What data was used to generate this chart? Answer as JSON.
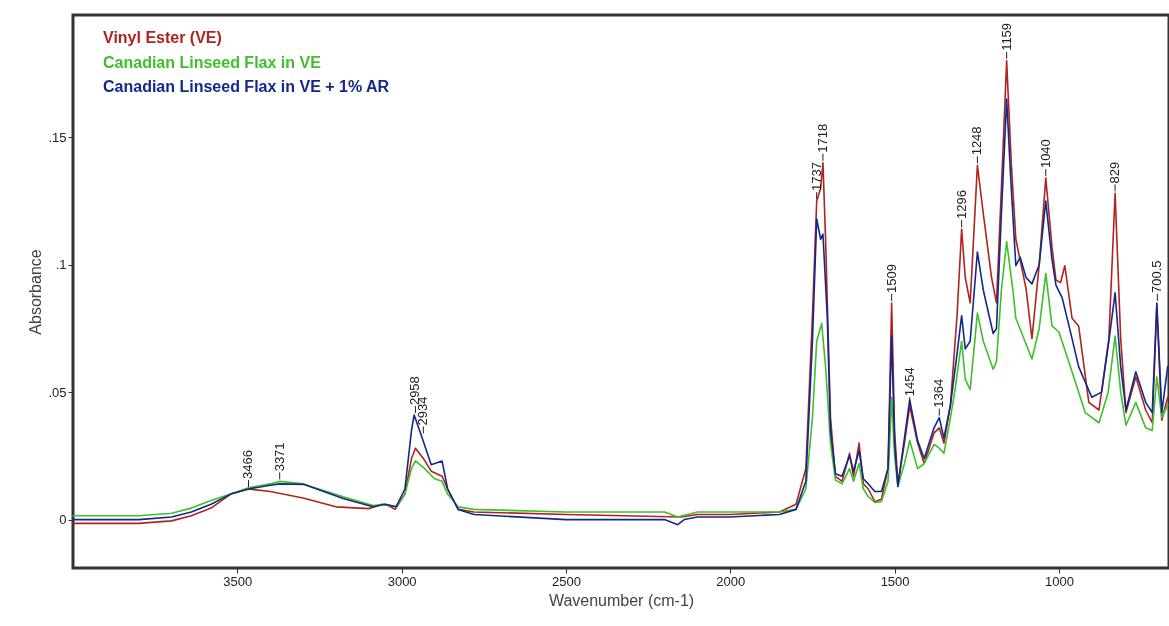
{
  "chart_data": {
    "type": "line",
    "xlabel": "Wavenumber (cm-1)",
    "ylabel": "Absorbance",
    "legend": "top left",
    "xlim": [
      4000,
      665
    ],
    "xticks": [
      3500,
      3000,
      2500,
      2000,
      1500,
      1000
    ],
    "ylim": [
      -0.019,
      0.198
    ],
    "yticks": [
      0,
      {
        "value": 0.05,
        "label": ".05"
      },
      {
        "value": 0.1,
        "label": ".1"
      },
      {
        "value": 0.15,
        "label": ".15"
      }
    ],
    "series": [
      {
        "name": "Vinyl Ester (VE)",
        "color": "#b0231f",
        "x": [
          4000,
          3800,
          3700,
          3640,
          3580,
          3520,
          3466,
          3400,
          3300,
          3200,
          3100,
          3060,
          3040,
          3020,
          2990,
          2970,
          2958,
          2934,
          2910,
          2877,
          2860,
          2828,
          2780,
          2500,
          2150,
          2100,
          2000,
          1850,
          1800,
          1770,
          1750,
          1737,
          1725,
          1718,
          1710,
          1695,
          1680,
          1660,
          1637,
          1625,
          1608,
          1595,
          1580,
          1560,
          1540,
          1520,
          1509,
          1500,
          1490,
          1470,
          1454,
          1430,
          1410,
          1380,
          1364,
          1350,
          1330,
          1310,
          1296,
          1285,
          1270,
          1248,
          1230,
          1205,
          1190,
          1175,
          1159,
          1145,
          1131,
          1100,
          1082,
          1060,
          1040,
          1021,
          1009,
          995,
          982,
          960,
          940,
          909,
          878,
          848,
          829,
          812,
          796,
          766,
          736,
          716,
          702,
          687,
          669
        ],
        "values": [
          -0.0015,
          -0.0015,
          -0.0005,
          0.0015,
          0.0045,
          0.01,
          0.012,
          0.011,
          0.0085,
          0.005,
          0.0043,
          0.006,
          0.0055,
          0.004,
          0.01,
          0.024,
          0.028,
          0.024,
          0.019,
          0.017,
          0.012,
          0.004,
          0.003,
          0.002,
          0.001,
          0.002,
          0.002,
          0.003,
          0.006,
          0.02,
          0.08,
          0.125,
          0.13,
          0.14,
          0.11,
          0.04,
          0.017,
          0.015,
          0.026,
          0.017,
          0.03,
          0.014,
          0.012,
          0.007,
          0.008,
          0.02,
          0.085,
          0.035,
          0.014,
          0.03,
          0.0445,
          0.03,
          0.022,
          0.034,
          0.036,
          0.03,
          0.045,
          0.08,
          0.114,
          0.095,
          0.085,
          0.139,
          0.12,
          0.095,
          0.085,
          0.13,
          0.18,
          0.14,
          0.11,
          0.0906,
          0.071,
          0.1,
          0.134,
          0.107,
          0.094,
          0.093,
          0.0996,
          0.079,
          0.076,
          0.046,
          0.043,
          0.071,
          0.128,
          0.071,
          0.042,
          0.056,
          0.043,
          0.038,
          0.084,
          0.039,
          0.048
        ]
      },
      {
        "name": "Canadian Linseed Flax in VE",
        "color": "#3fbf2a",
        "x": [
          4000,
          3800,
          3700,
          3640,
          3580,
          3520,
          3466,
          3400,
          3370,
          3300,
          3178,
          3087,
          3050,
          3017,
          2990,
          2970,
          2958,
          2930,
          2900,
          2877,
          2860,
          2828,
          2780,
          2500,
          2200,
          2160,
          2100,
          2000,
          1850,
          1800,
          1770,
          1750,
          1737,
          1722,
          1710,
          1695,
          1680,
          1660,
          1637,
          1625,
          1608,
          1595,
          1580,
          1560,
          1540,
          1520,
          1509,
          1500,
          1490,
          1470,
          1454,
          1430,
          1410,
          1380,
          1364,
          1350,
          1330,
          1316,
          1296,
          1285,
          1270,
          1248,
          1230,
          1200,
          1190,
          1175,
          1159,
          1140,
          1131,
          1082,
          1060,
          1040,
          1021,
          1000,
          960,
          920,
          878,
          850,
          829,
          812,
          796,
          766,
          736,
          716,
          702,
          687,
          669
        ],
        "values": [
          0.0015,
          0.0015,
          0.0025,
          0.0045,
          0.0075,
          0.01,
          0.0125,
          0.014,
          0.015,
          0.014,
          0.009,
          0.0055,
          0.006,
          0.005,
          0.01,
          0.02,
          0.023,
          0.02,
          0.016,
          0.015,
          0.01,
          0.005,
          0.004,
          0.003,
          0.003,
          0.001,
          0.003,
          0.003,
          0.003,
          0.004,
          0.012,
          0.04,
          0.07,
          0.077,
          0.06,
          0.03,
          0.0155,
          0.014,
          0.02,
          0.015,
          0.022,
          0.012,
          0.009,
          0.0067,
          0.007,
          0.015,
          0.048,
          0.025,
          0.013,
          0.022,
          0.031,
          0.02,
          0.022,
          0.0295,
          0.028,
          0.026,
          0.04,
          0.051,
          0.07,
          0.055,
          0.051,
          0.081,
          0.07,
          0.059,
          0.062,
          0.09,
          0.109,
          0.09,
          0.079,
          0.063,
          0.075,
          0.0965,
          0.076,
          0.0736,
          0.058,
          0.042,
          0.038,
          0.05,
          0.072,
          0.05,
          0.037,
          0.046,
          0.036,
          0.035,
          0.056,
          0.04,
          0.045
        ]
      },
      {
        "name": "Canadian Linseed Flax in VE + 1% AR",
        "color": "#13288c",
        "x": [
          4000,
          3800,
          3700,
          3640,
          3580,
          3520,
          3466,
          3400,
          3371,
          3296,
          3178,
          3087,
          3050,
          3017,
          2990,
          2970,
          2962,
          2940,
          2910,
          2877,
          2860,
          2828,
          2780,
          2500,
          2200,
          2160,
          2140,
          2100,
          2000,
          1850,
          1800,
          1770,
          1750,
          1737,
          1725,
          1718,
          1705,
          1695,
          1680,
          1660,
          1637,
          1625,
          1608,
          1595,
          1580,
          1560,
          1540,
          1520,
          1509,
          1500,
          1490,
          1470,
          1454,
          1430,
          1410,
          1380,
          1364,
          1350,
          1330,
          1310,
          1296,
          1285,
          1270,
          1248,
          1230,
          1200,
          1190,
          1175,
          1159,
          1145,
          1131,
          1118,
          1100,
          1082,
          1060,
          1040,
          1021,
          1009,
          990,
          960,
          940,
          900,
          870,
          848,
          829,
          812,
          796,
          766,
          736,
          716,
          702,
          687,
          669
        ],
        "values": [
          0,
          0,
          0.001,
          0.003,
          0.006,
          0.01,
          0.012,
          0.0135,
          0.014,
          0.0138,
          0.0083,
          0.005,
          0.006,
          0.005,
          0.012,
          0.035,
          0.041,
          0.033,
          0.0215,
          0.023,
          0.012,
          0.004,
          0.002,
          0,
          0,
          -0.002,
          0,
          0.001,
          0.001,
          0.002,
          0.004,
          0.015,
          0.07,
          0.118,
          0.11,
          0.112,
          0.08,
          0.035,
          0.018,
          0.017,
          0.025,
          0.019,
          0.027,
          0.016,
          0.014,
          0.011,
          0.011,
          0.02,
          0.072,
          0.03,
          0.013,
          0.032,
          0.047,
          0.031,
          0.024,
          0.036,
          0.04,
          0.032,
          0.045,
          0.065,
          0.08,
          0.067,
          0.07,
          0.105,
          0.09,
          0.073,
          0.075,
          0.12,
          0.165,
          0.13,
          0.0996,
          0.103,
          0.095,
          0.0925,
          0.1,
          0.125,
          0.102,
          0.092,
          0.087,
          0.071,
          0.06,
          0.048,
          0.05,
          0.07,
          0.089,
          0.06,
          0.043,
          0.058,
          0.046,
          0.042,
          0.085,
          0.042,
          0.06
        ]
      }
    ],
    "annotations": [
      {
        "text": "3466",
        "x": 3466,
        "y": 0.012
      },
      {
        "text": "3371",
        "x": 3371,
        "y": 0.015
      },
      {
        "text": "2958",
        "x": 2958,
        "y": 0.041
      },
      {
        "text": "2934",
        "x": 2934,
        "y": 0.033
      },
      {
        "text": "1737",
        "x": 1737,
        "y": 0.125
      },
      {
        "text": "1718",
        "x": 1718,
        "y": 0.14
      },
      {
        "text": "1509",
        "x": 1509,
        "y": 0.085
      },
      {
        "text": "1454",
        "x": 1454,
        "y": 0.0445
      },
      {
        "text": "1364",
        "x": 1364,
        "y": 0.04
      },
      {
        "text": "1296",
        "x": 1296,
        "y": 0.114
      },
      {
        "text": "1248",
        "x": 1248,
        "y": 0.139
      },
      {
        "text": "1159",
        "x": 1159,
        "y": 0.18
      },
      {
        "text": "1040",
        "x": 1040,
        "y": 0.134
      },
      {
        "text": "829",
        "x": 829,
        "y": 0.128
      },
      {
        "text": "700.5",
        "x": 700.5,
        "y": 0.085
      }
    ]
  }
}
